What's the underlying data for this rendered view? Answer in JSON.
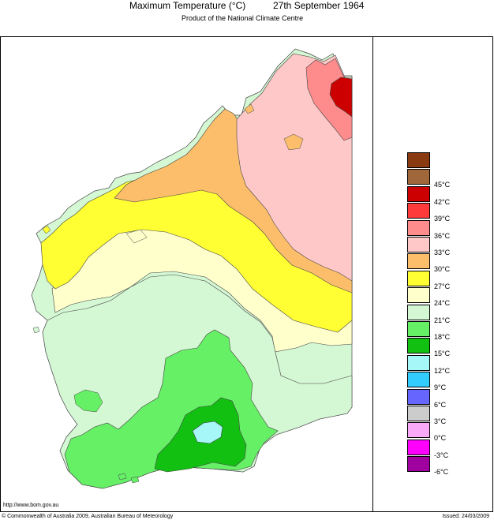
{
  "header": {
    "title": "Maximum Temperature (°C)",
    "date": "27th September 1964",
    "subtitle": "Product of the National Climate Centre"
  },
  "legend": {
    "items": [
      {
        "label": "",
        "color": "#8a3a10"
      },
      {
        "label": "45°C",
        "color": "#a0683a"
      },
      {
        "label": "42°C",
        "color": "#cc0000"
      },
      {
        "label": "39°C",
        "color": "#ff3a3a"
      },
      {
        "label": "36°C",
        "color": "#ff8c8c"
      },
      {
        "label": "33°C",
        "color": "#ffc8c8"
      },
      {
        "label": "30°C",
        "color": "#fcbe6a"
      },
      {
        "label": "27°C",
        "color": "#ffff33"
      },
      {
        "label": "24°C",
        "color": "#ffffcc"
      },
      {
        "label": "21°C",
        "color": "#d4f7d4"
      },
      {
        "label": "18°C",
        "color": "#66f066"
      },
      {
        "label": "15°C",
        "color": "#12c012"
      },
      {
        "label": "12°C",
        "color": "#a6f8f8"
      },
      {
        "label": "9°C",
        "color": "#33ccff"
      },
      {
        "label": "6°C",
        "color": "#6666ff"
      },
      {
        "label": "3°C",
        "color": "#cccccc"
      },
      {
        "label": "0°C",
        "color": "#f8aaf8"
      },
      {
        "label": "-3°C",
        "color": "#ff00ff"
      },
      {
        "label": "-6°C",
        "color": "#a000a0"
      }
    ]
  },
  "footer": {
    "url": "http://www.bom.gov.au",
    "copyright": "© Commonwealth of Australia 2009, Australian Bureau of Meteorology",
    "issued": "Issued: 24/03/2009"
  },
  "map": {
    "region": "Western Australia",
    "zones": [
      {
        "name": "zone-39-42",
        "color": "#cc0000"
      },
      {
        "name": "zone-36-39",
        "color": "#ff3a3a"
      },
      {
        "name": "zone-33-36",
        "color": "#ff8c8c"
      },
      {
        "name": "zone-30-33",
        "color": "#ffc8c8"
      },
      {
        "name": "zone-27-30",
        "color": "#fcbe6a"
      },
      {
        "name": "zone-24-27",
        "color": "#ffff33"
      },
      {
        "name": "zone-21-24",
        "color": "#ffffcc"
      },
      {
        "name": "zone-18-21",
        "color": "#d4f7d4"
      },
      {
        "name": "zone-15-18",
        "color": "#66f066"
      },
      {
        "name": "zone-12-15",
        "color": "#12c012"
      },
      {
        "name": "zone-9-12",
        "color": "#a6f8f8"
      }
    ]
  }
}
